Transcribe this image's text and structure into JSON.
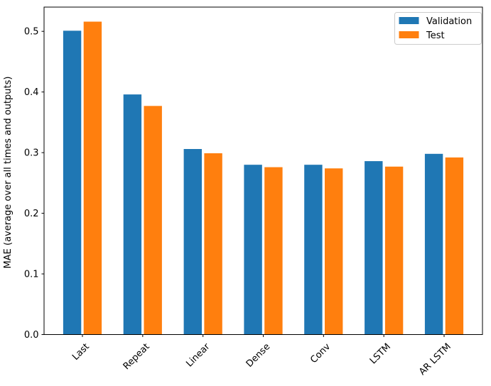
{
  "figure": {
    "background": "#ffffff"
  },
  "chart_data": {
    "type": "bar",
    "title": "",
    "xlabel": "",
    "ylabel": "MAE (average over all times and outputs)",
    "categories": [
      "Last",
      "Repeat",
      "Linear",
      "Dense",
      "Conv",
      "LSTM",
      "AR LSTM"
    ],
    "series": [
      {
        "name": "Validation",
        "color": "#1f77b4",
        "values": [
          0.501,
          0.396,
          0.306,
          0.28,
          0.28,
          0.286,
          0.298
        ]
      },
      {
        "name": "Test",
        "color": "#ff7f0e",
        "values": [
          0.516,
          0.377,
          0.299,
          0.276,
          0.274,
          0.277,
          0.292
        ]
      }
    ],
    "yticks": [
      0.0,
      0.1,
      0.2,
      0.3,
      0.4,
      0.5
    ],
    "ytick_labels": [
      "0.0",
      "0.1",
      "0.2",
      "0.3",
      "0.4",
      "0.5"
    ],
    "ylim": [
      0,
      0.54
    ],
    "xtick_rotation": 45,
    "grid": false,
    "legend": {
      "position": "upper right",
      "border_color": "#cccccc",
      "background": "#ffffff"
    },
    "spine_color": "#000000",
    "text_color": "#000000"
  }
}
